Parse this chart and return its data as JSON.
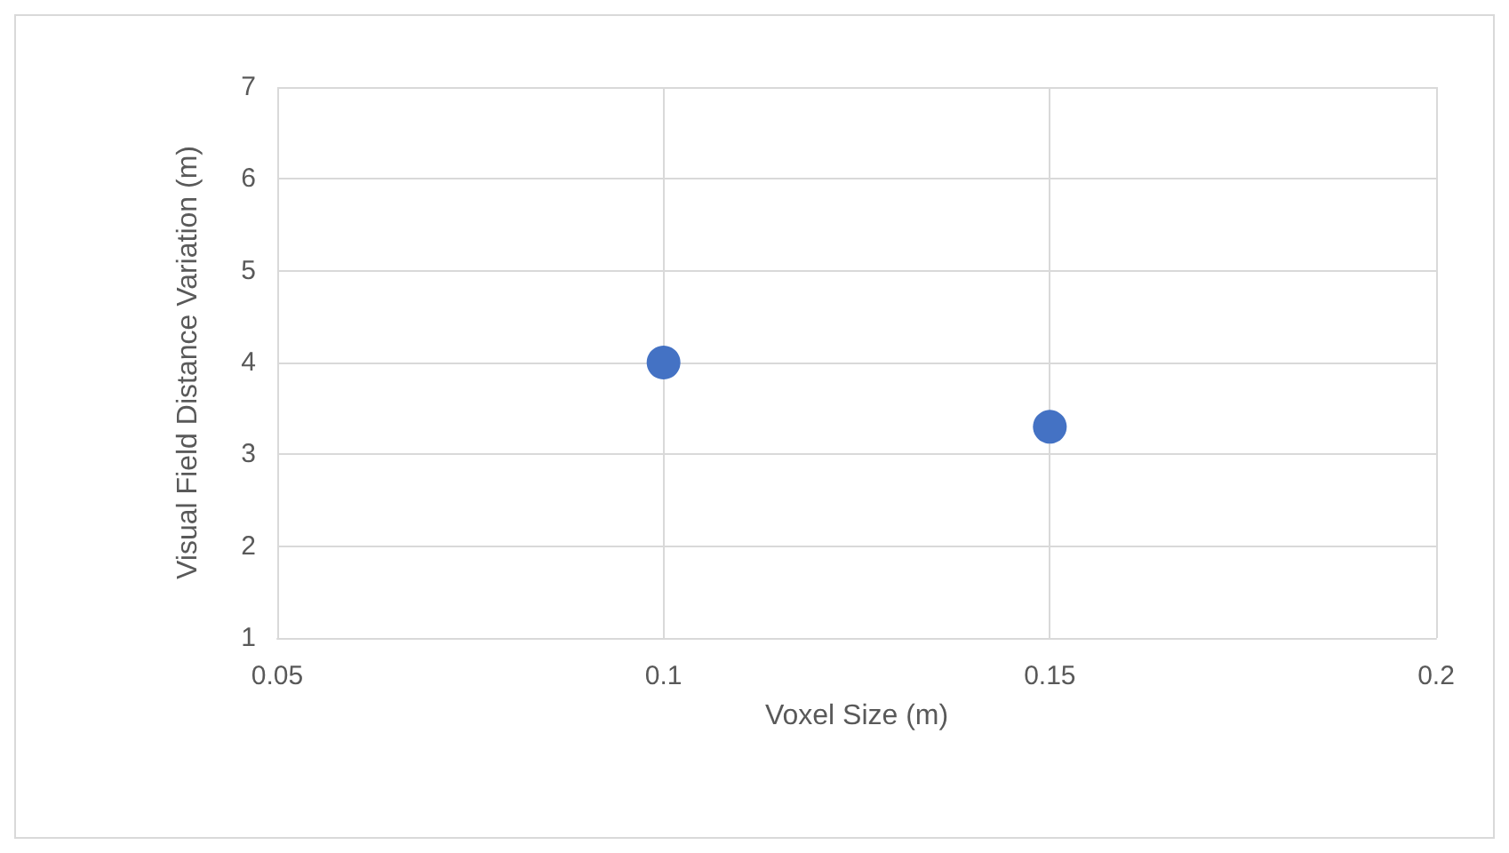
{
  "chart_data": {
    "type": "scatter",
    "xlabel": "Voxel Size (m)",
    "ylabel": "Visual Field Distance Variation (m)",
    "x": [
      0.1,
      0.15
    ],
    "series": [
      {
        "color": "#4472c4",
        "values": [
          4,
          3.3
        ]
      }
    ],
    "xlim": [
      0.05,
      0.2
    ],
    "xticks": [
      0.05,
      0.1,
      0.15,
      0.2
    ],
    "ylim": [
      1,
      7
    ],
    "yticks": [
      1,
      2,
      3,
      4,
      5,
      6,
      7
    ],
    "grid": true,
    "marker": "circle"
  }
}
